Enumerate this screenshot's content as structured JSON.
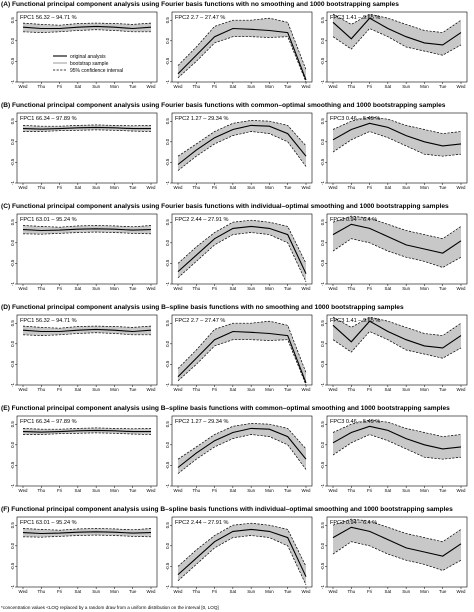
{
  "days": [
    "Wed",
    "Thu",
    "Fri",
    "Sat",
    "Sun",
    "Mon",
    "Tue",
    "Wed"
  ],
  "y_ticks": [
    "0.5",
    "0.0",
    "-0.5",
    "-1"
  ],
  "footnote": "*concentration values <LOQ replaced by a random draw from a uniform distribution on the interval [0, LOQ]",
  "legend": {
    "original": "original analysis",
    "bootstrap": "bootstrap sample",
    "ci": "95% confidence interval"
  },
  "colors": {
    "band": "#c8c8c8",
    "line": "#000000",
    "axis": "#000000"
  },
  "chart_data": [
    {
      "type": "line",
      "title": "(A) Functional principal component analysis using Fourier basis functions with no smoothing and 1000 bootstrapping samples",
      "ylim": [
        -1,
        0.7
      ],
      "panels": [
        {
          "label": "FPC1 56.32 – 94.71 %",
          "x": [
            "Wed",
            "Thu",
            "Fri",
            "Sat",
            "Sun",
            "Mon",
            "Tue",
            "Wed"
          ],
          "original": [
            0.33,
            0.3,
            0.3,
            0.33,
            0.35,
            0.33,
            0.3,
            0.33
          ],
          "lower": [
            0.22,
            0.2,
            0.22,
            0.25,
            0.27,
            0.25,
            0.22,
            0.22
          ],
          "upper": [
            0.43,
            0.4,
            0.38,
            0.42,
            0.43,
            0.42,
            0.4,
            0.43
          ]
        },
        {
          "label": "FPC2 2.7 – 27.47 %",
          "x": [
            "Wed",
            "Thu",
            "Fri",
            "Sat",
            "Sun",
            "Mon",
            "Tue",
            "Wed"
          ],
          "original": [
            -0.8,
            -0.35,
            0.1,
            0.3,
            0.28,
            0.25,
            0.2,
            -0.95
          ],
          "lower": [
            -0.9,
            -0.5,
            -0.05,
            0.1,
            0.1,
            0.08,
            0.1,
            -1.0
          ],
          "upper": [
            -0.6,
            -0.15,
            0.35,
            0.5,
            0.5,
            0.55,
            0.45,
            -0.7
          ]
        },
        {
          "label": "FPC3 1.41 – 9.65 %",
          "x": [
            "Wed",
            "Thu",
            "Fri",
            "Sat",
            "Sun",
            "Mon",
            "Tue",
            "Wed"
          ],
          "original": [
            0.45,
            0.05,
            0.55,
            0.3,
            0.1,
            -0.05,
            -0.1,
            0.2
          ],
          "lower": [
            0.1,
            -0.2,
            0.3,
            0.1,
            -0.15,
            -0.25,
            -0.35,
            -0.1
          ],
          "upper": [
            0.65,
            0.4,
            0.65,
            0.55,
            0.4,
            0.25,
            0.2,
            0.5
          ]
        }
      ]
    },
    {
      "type": "line",
      "title": "(B) Functional principal component analysis using Fourier basis functions with common–optimal smoothing and 1000 bootstrapping samples",
      "ylim": [
        -1,
        0.7
      ],
      "panels": [
        {
          "label": "FPC1 66.34 – 97.89 %",
          "x": [
            "Wed",
            "Thu",
            "Fri",
            "Sat",
            "Sun",
            "Mon",
            "Tue",
            "Wed"
          ],
          "original": [
            0.32,
            0.31,
            0.32,
            0.34,
            0.35,
            0.34,
            0.32,
            0.32
          ],
          "lower": [
            0.25,
            0.25,
            0.27,
            0.28,
            0.29,
            0.28,
            0.26,
            0.25
          ],
          "upper": [
            0.4,
            0.38,
            0.38,
            0.4,
            0.41,
            0.4,
            0.39,
            0.4
          ]
        },
        {
          "label": "FPC2 1.27 – 29.34 %",
          "x": [
            "Wed",
            "Thu",
            "Fri",
            "Sat",
            "Sun",
            "Mon",
            "Tue",
            "Wed"
          ],
          "original": [
            -0.55,
            -0.2,
            0.1,
            0.3,
            0.4,
            0.38,
            0.2,
            -0.35
          ],
          "lower": [
            -0.7,
            -0.35,
            -0.05,
            0.15,
            0.25,
            0.2,
            0.0,
            -0.6
          ],
          "upper": [
            -0.35,
            -0.05,
            0.25,
            0.45,
            0.52,
            0.5,
            0.4,
            -0.1
          ]
        },
        {
          "label": "FPC3 0.46 – 5.49 %",
          "x": [
            "Wed",
            "Thu",
            "Fri",
            "Sat",
            "Sun",
            "Mon",
            "Tue",
            "Wed"
          ],
          "original": [
            0.05,
            0.3,
            0.45,
            0.35,
            0.15,
            0.0,
            -0.1,
            -0.05
          ],
          "lower": [
            -0.25,
            0.05,
            0.25,
            0.1,
            -0.1,
            -0.3,
            -0.35,
            -0.3
          ],
          "upper": [
            0.3,
            0.5,
            0.6,
            0.55,
            0.4,
            0.3,
            0.2,
            0.25
          ]
        }
      ]
    },
    {
      "type": "line",
      "title": "(C) Functional principal component analysis using Fourier basis functions with individual–optimal smoothing and 1000 bootstrapping samples",
      "ylim": [
        -1,
        0.7
      ],
      "panels": [
        {
          "label": "FPC1 63.01 – 95.24 %",
          "x": [
            "Wed",
            "Thu",
            "Fri",
            "Sat",
            "Sun",
            "Mon",
            "Tue",
            "Wed"
          ],
          "original": [
            0.32,
            0.3,
            0.31,
            0.33,
            0.34,
            0.33,
            0.31,
            0.32
          ],
          "lower": [
            0.22,
            0.21,
            0.23,
            0.25,
            0.26,
            0.25,
            0.23,
            0.22
          ],
          "upper": [
            0.42,
            0.4,
            0.38,
            0.41,
            0.42,
            0.41,
            0.39,
            0.42
          ]
        },
        {
          "label": "FPC2 2.44 – 27.91 %",
          "x": [
            "Wed",
            "Thu",
            "Fri",
            "Sat",
            "Sun",
            "Mon",
            "Tue",
            "Wed"
          ],
          "original": [
            -0.7,
            -0.3,
            0.1,
            0.35,
            0.4,
            0.35,
            0.2,
            -0.75
          ],
          "lower": [
            -0.85,
            -0.45,
            -0.05,
            0.2,
            0.25,
            0.2,
            0.0,
            -0.95
          ],
          "upper": [
            -0.5,
            -0.1,
            0.25,
            0.5,
            0.55,
            0.5,
            0.4,
            -0.5
          ]
        },
        {
          "label": "FPC3 0.94 – 6.4 %",
          "x": [
            "Wed",
            "Thu",
            "Fri",
            "Sat",
            "Sun",
            "Mon",
            "Tue",
            "Wed"
          ],
          "original": [
            0.2,
            0.45,
            0.35,
            0.15,
            -0.05,
            -0.15,
            -0.25,
            0.05
          ],
          "lower": [
            -0.2,
            0.1,
            0.0,
            -0.2,
            -0.35,
            -0.45,
            -0.6,
            -0.35
          ],
          "upper": [
            0.5,
            0.65,
            0.6,
            0.45,
            0.3,
            0.2,
            0.1,
            0.4
          ]
        }
      ]
    },
    {
      "type": "line",
      "title": "(D) Functional principal component analysis using B–spline basis functions with no smoothing and 1000 bootstrapping samples",
      "ylim": [
        -1,
        0.7
      ],
      "panels": [
        {
          "label": "FPC1 56.32 – 94.71 %",
          "x": [
            "Wed",
            "Thu",
            "Fri",
            "Sat",
            "Sun",
            "Mon",
            "Tue",
            "Wed"
          ],
          "original": [
            0.33,
            0.3,
            0.3,
            0.33,
            0.35,
            0.33,
            0.3,
            0.33
          ],
          "lower": [
            0.22,
            0.2,
            0.22,
            0.25,
            0.27,
            0.25,
            0.22,
            0.22
          ],
          "upper": [
            0.43,
            0.4,
            0.38,
            0.42,
            0.43,
            0.42,
            0.4,
            0.43
          ]
        },
        {
          "label": "FPC2 2.7 – 27.47 %",
          "x": [
            "Wed",
            "Thu",
            "Fri",
            "Sat",
            "Sun",
            "Mon",
            "Tue",
            "Wed"
          ],
          "original": [
            -0.8,
            -0.35,
            0.1,
            0.3,
            0.28,
            0.25,
            0.2,
            -0.95
          ],
          "lower": [
            -0.9,
            -0.5,
            -0.05,
            0.1,
            0.1,
            0.08,
            0.1,
            -1.0
          ],
          "upper": [
            -0.6,
            -0.15,
            0.35,
            0.5,
            0.5,
            0.55,
            0.45,
            -0.7
          ]
        },
        {
          "label": "FPC3 1.41 – 9.65 %",
          "x": [
            "Wed",
            "Thu",
            "Fri",
            "Sat",
            "Sun",
            "Mon",
            "Tue",
            "Wed"
          ],
          "original": [
            0.45,
            0.05,
            0.55,
            0.3,
            0.1,
            -0.05,
            -0.1,
            0.2
          ],
          "lower": [
            0.1,
            -0.2,
            0.3,
            0.1,
            -0.15,
            -0.25,
            -0.35,
            -0.1
          ],
          "upper": [
            0.65,
            0.4,
            0.65,
            0.55,
            0.4,
            0.25,
            0.2,
            0.5
          ]
        }
      ]
    },
    {
      "type": "line",
      "title": "(E) Functional principal component analysis using B–spline basis functions with common–optimal smoothing and 1000 bootstrapping samples",
      "ylim": [
        -1,
        0.7
      ],
      "panels": [
        {
          "label": "FPC1 66.34 – 97.89 %",
          "x": [
            "Wed",
            "Thu",
            "Fri",
            "Sat",
            "Sun",
            "Mon",
            "Tue",
            "Wed"
          ],
          "original": [
            0.32,
            0.31,
            0.32,
            0.34,
            0.35,
            0.34,
            0.32,
            0.32
          ],
          "lower": [
            0.25,
            0.25,
            0.27,
            0.28,
            0.29,
            0.28,
            0.26,
            0.25
          ],
          "upper": [
            0.4,
            0.38,
            0.38,
            0.4,
            0.41,
            0.4,
            0.39,
            0.4
          ]
        },
        {
          "label": "FPC2 1.27 – 29.34 %",
          "x": [
            "Wed",
            "Thu",
            "Fri",
            "Sat",
            "Sun",
            "Mon",
            "Tue",
            "Wed"
          ],
          "original": [
            -0.55,
            -0.2,
            0.1,
            0.3,
            0.4,
            0.38,
            0.2,
            -0.35
          ],
          "lower": [
            -0.7,
            -0.35,
            -0.05,
            0.15,
            0.25,
            0.2,
            0.0,
            -0.6
          ],
          "upper": [
            -0.35,
            -0.05,
            0.25,
            0.45,
            0.52,
            0.5,
            0.4,
            -0.1
          ]
        },
        {
          "label": "FPC3 0.46 – 5.49 %",
          "x": [
            "Wed",
            "Thu",
            "Fri",
            "Sat",
            "Sun",
            "Mon",
            "Tue",
            "Wed"
          ],
          "original": [
            0.05,
            0.3,
            0.45,
            0.35,
            0.15,
            0.0,
            -0.1,
            -0.05
          ],
          "lower": [
            -0.25,
            0.05,
            0.25,
            0.1,
            -0.1,
            -0.3,
            -0.35,
            -0.3
          ],
          "upper": [
            0.3,
            0.5,
            0.6,
            0.55,
            0.4,
            0.3,
            0.2,
            0.25
          ]
        }
      ]
    },
    {
      "type": "line",
      "title": "(F) Functional principal component analysis using B–spline basis functions with individual–optimal smoothing and 1000 bootstrapping samples",
      "ylim": [
        -1,
        0.7
      ],
      "panels": [
        {
          "label": "FPC1 63.01 – 95.24 %",
          "x": [
            "Wed",
            "Thu",
            "Fri",
            "Sat",
            "Sun",
            "Mon",
            "Tue",
            "Wed"
          ],
          "original": [
            0.32,
            0.3,
            0.31,
            0.33,
            0.34,
            0.33,
            0.31,
            0.32
          ],
          "lower": [
            0.22,
            0.21,
            0.23,
            0.25,
            0.26,
            0.25,
            0.23,
            0.22
          ],
          "upper": [
            0.42,
            0.4,
            0.38,
            0.41,
            0.42,
            0.41,
            0.39,
            0.42
          ]
        },
        {
          "label": "FPC2 2.44 – 27.91 %",
          "x": [
            "Wed",
            "Thu",
            "Fri",
            "Sat",
            "Sun",
            "Mon",
            "Tue",
            "Wed"
          ],
          "original": [
            -0.7,
            -0.3,
            0.1,
            0.35,
            0.4,
            0.35,
            0.2,
            -0.75
          ],
          "lower": [
            -0.85,
            -0.45,
            -0.05,
            0.2,
            0.25,
            0.2,
            0.0,
            -0.95
          ],
          "upper": [
            -0.5,
            -0.1,
            0.25,
            0.5,
            0.55,
            0.5,
            0.4,
            -0.5
          ]
        },
        {
          "label": "FPC3 0.94 – 6.4 %",
          "x": [
            "Wed",
            "Thu",
            "Fri",
            "Sat",
            "Sun",
            "Mon",
            "Tue",
            "Wed"
          ],
          "original": [
            0.2,
            0.45,
            0.35,
            0.15,
            -0.05,
            -0.15,
            -0.25,
            0.05
          ],
          "lower": [
            -0.2,
            0.1,
            0.0,
            -0.2,
            -0.35,
            -0.45,
            -0.6,
            -0.35
          ],
          "upper": [
            0.5,
            0.65,
            0.6,
            0.45,
            0.3,
            0.2,
            0.1,
            0.4
          ]
        }
      ]
    }
  ]
}
